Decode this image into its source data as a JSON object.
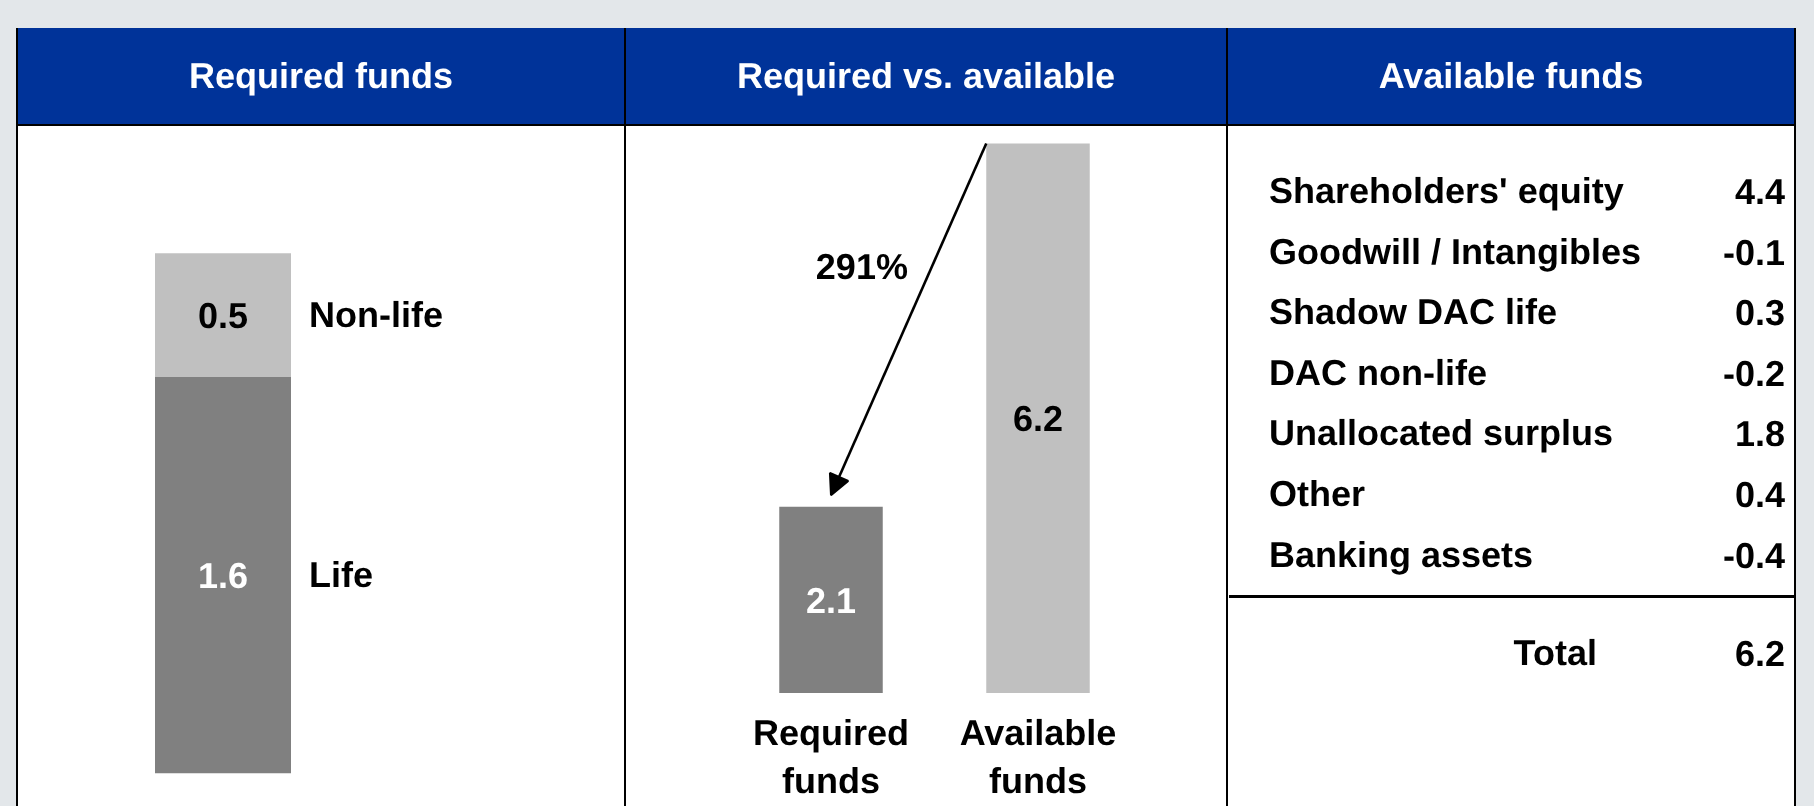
{
  "chart_data": [
    {
      "type": "bar",
      "title": "Required funds",
      "categories": [
        null
      ],
      "stacked": true,
      "series": [
        {
          "name": "Life",
          "color": "#808080",
          "values": [
            1.6
          ]
        },
        {
          "name": "Non-life",
          "color": "#c0c0c0",
          "values": [
            0.5
          ]
        }
      ],
      "data_labels": true
    },
    {
      "type": "bar",
      "title": "Required vs. available",
      "categories": [
        "Required funds",
        "Available funds"
      ],
      "values": [
        2.1,
        6.2
      ],
      "colors": [
        "#808080",
        "#c0c0c0"
      ],
      "data_labels": true,
      "annotations": [
        "291%"
      ]
    },
    {
      "type": "other",
      "title": "Available funds",
      "categories": [
        "Shareholders' equity",
        "Goodwill / Intangibles",
        "Shadow DAC life",
        "DAC non-life",
        "Unallocated surplus",
        "Other",
        "Banking assets"
      ],
      "values": [
        4.4,
        -0.1,
        0.3,
        -0.2,
        1.8,
        0.4,
        -0.4
      ],
      "data_labels": true,
      "annotations": [
        "Total"
      ],
      "totals": [
        "6.2"
      ]
    }
  ]
}
